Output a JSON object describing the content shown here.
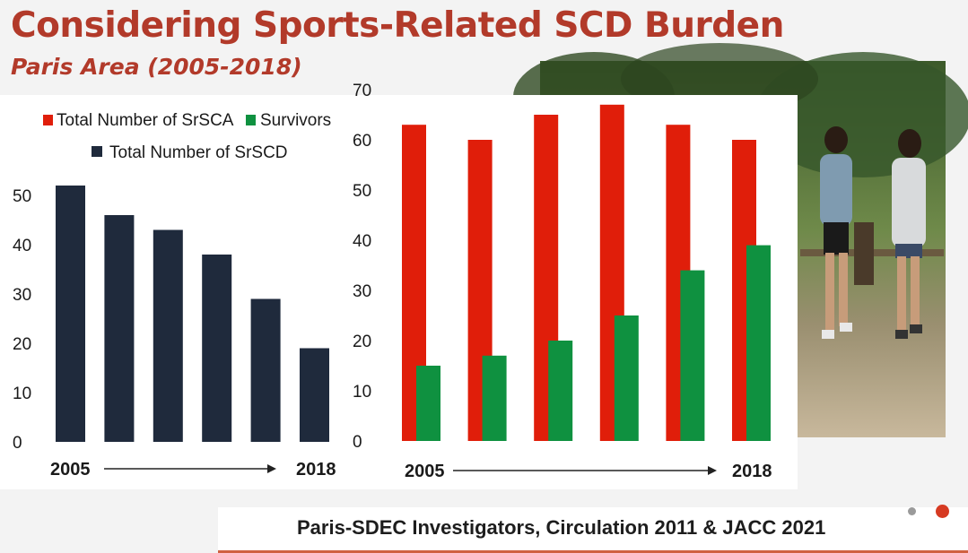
{
  "slide": {
    "title": "Considering Sports-Related SCD Burden",
    "subtitle": "Paris Area (2005-2018)",
    "citation": "Paris-SDEC Investigators, Circulation 2011 & JACC 2021"
  },
  "colors": {
    "title": "#b23a2a",
    "srscd": "#1f2a3c",
    "srsca": "#e01e0a",
    "survivors": "#0f9140"
  },
  "chart_data": [
    {
      "type": "bar",
      "categories": [
        "2005",
        "",
        "",
        "",
        "",
        "2018"
      ],
      "series": [
        {
          "name": "Total Number of SrSCD",
          "values": [
            52,
            46,
            43,
            38,
            29,
            19
          ]
        }
      ],
      "ylim": [
        0,
        50
      ],
      "yticks": [
        "0",
        "10",
        "20",
        "30",
        "40",
        "50"
      ],
      "x_start_label": "2005",
      "x_end_label": "2018",
      "legend": [
        "Total Number of SrSCD"
      ],
      "legend_position": "top"
    },
    {
      "type": "bar",
      "categories": [
        "2005",
        "",
        "",
        "",
        "",
        "2018"
      ],
      "series": [
        {
          "name": "Total Number of SrSCA",
          "values": [
            63,
            60,
            65,
            67,
            63,
            60
          ]
        },
        {
          "name": "Survivors",
          "values": [
            15,
            17,
            20,
            25,
            34,
            39
          ]
        }
      ],
      "ylim": [
        0,
        70
      ],
      "yticks": [
        "0",
        "10",
        "20",
        "30",
        "40",
        "50",
        "60",
        "70"
      ],
      "x_start_label": "2005",
      "x_end_label": "2018",
      "legend": [
        "Total Number of SrSCA",
        "Survivors"
      ],
      "legend_position": "top"
    }
  ]
}
